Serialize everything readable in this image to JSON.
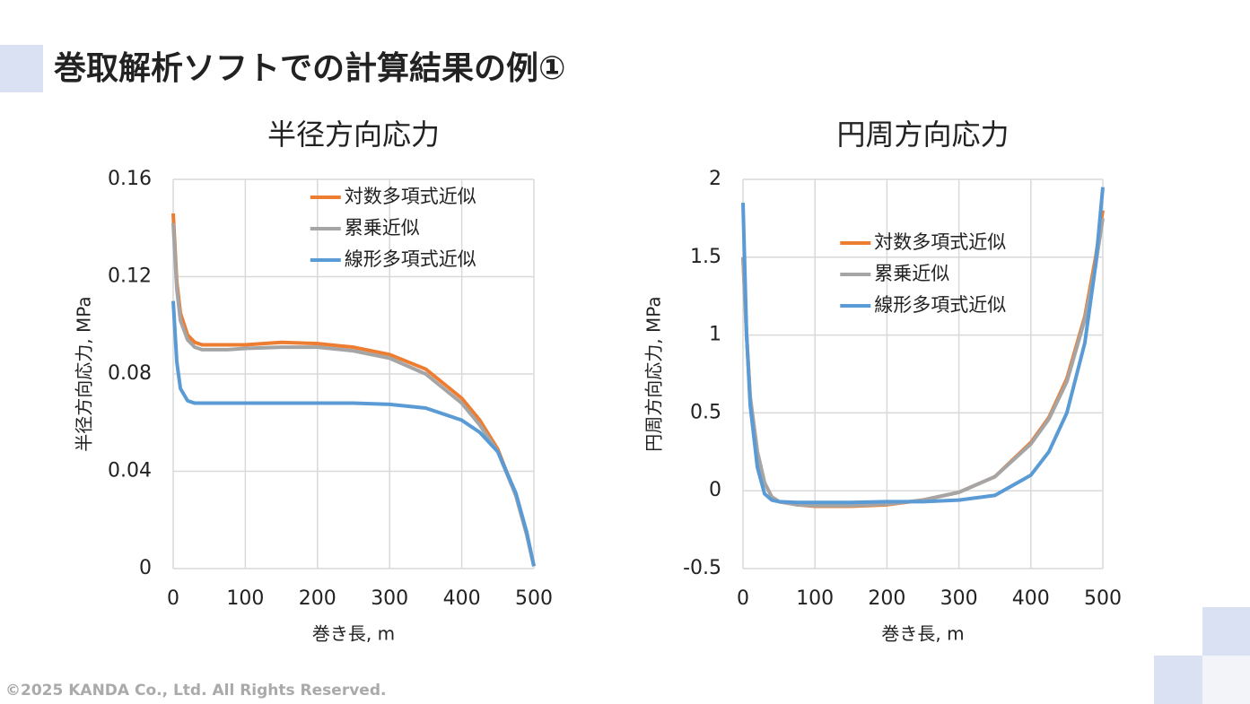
{
  "header": {
    "title": "巻取解析ソフトでの計算結果の例①"
  },
  "footer": {
    "copyright": "©2025 KANDA Co., Ltd. All Rights Reserved."
  },
  "chart_data": [
    {
      "type": "line",
      "title": "半径方向応力",
      "x_label": "巻き長, m",
      "y_label": "半径方向応力, MPa",
      "x": [
        0,
        5,
        10,
        20,
        30,
        40,
        50,
        75,
        100,
        150,
        200,
        250,
        300,
        350,
        400,
        425,
        450,
        475,
        490,
        500
      ],
      "series": [
        {
          "name": "対数多項式近似",
          "color": "#ed7d31",
          "values": [
            0.146,
            0.118,
            0.105,
            0.096,
            0.093,
            0.092,
            0.092,
            0.092,
            0.092,
            0.093,
            0.0925,
            0.091,
            0.088,
            0.082,
            0.07,
            0.061,
            0.049,
            0.03,
            0.014,
            0.001
          ]
        },
        {
          "name": "累乗近似",
          "color": "#a5a5a5",
          "values": [
            0.142,
            0.115,
            0.102,
            0.094,
            0.091,
            0.09,
            0.09,
            0.09,
            0.0905,
            0.091,
            0.091,
            0.0895,
            0.0865,
            0.08,
            0.068,
            0.059,
            0.048,
            0.03,
            0.014,
            0.001
          ]
        },
        {
          "name": "線形多項式近似",
          "color": "#5b9bd5",
          "values": [
            0.11,
            0.085,
            0.074,
            0.069,
            0.068,
            0.068,
            0.068,
            0.068,
            0.068,
            0.068,
            0.068,
            0.068,
            0.0675,
            0.066,
            0.061,
            0.056,
            0.048,
            0.031,
            0.015,
            0.001
          ]
        }
      ],
      "xlim": [
        0,
        500
      ],
      "xticks": [
        0,
        100,
        200,
        300,
        400,
        500
      ],
      "ylim": [
        0,
        0.16
      ],
      "yticks": [
        0,
        0.04,
        0.08,
        0.12,
        0.16
      ],
      "grid": true,
      "legend": "upper right"
    },
    {
      "type": "line",
      "title": "円周方向応力",
      "x_label": "巻き長, m",
      "y_label": "円周方向応力, MPa",
      "x": [
        0,
        5,
        10,
        20,
        30,
        40,
        50,
        75,
        100,
        150,
        200,
        250,
        300,
        350,
        400,
        425,
        450,
        475,
        490,
        500
      ],
      "series": [
        {
          "name": "対数多項式近似",
          "color": "#ed7d31",
          "values": [
            1.5,
            1.0,
            0.6,
            0.25,
            0.05,
            -0.04,
            -0.07,
            -0.09,
            -0.1,
            -0.1,
            -0.09,
            -0.06,
            -0.01,
            0.09,
            0.31,
            0.47,
            0.72,
            1.12,
            1.5,
            1.8
          ]
        },
        {
          "name": "累乗近似",
          "color": "#a5a5a5",
          "values": [
            1.5,
            1.0,
            0.6,
            0.25,
            0.05,
            -0.04,
            -0.07,
            -0.09,
            -0.095,
            -0.095,
            -0.085,
            -0.06,
            -0.01,
            0.09,
            0.3,
            0.46,
            0.7,
            1.1,
            1.45,
            1.75
          ]
        },
        {
          "name": "線形多項式近似",
          "color": "#5b9bd5",
          "values": [
            1.85,
            1.0,
            0.55,
            0.15,
            -0.02,
            -0.06,
            -0.07,
            -0.075,
            -0.075,
            -0.075,
            -0.07,
            -0.07,
            -0.06,
            -0.03,
            0.1,
            0.25,
            0.5,
            0.95,
            1.45,
            1.95
          ]
        }
      ],
      "xlim": [
        0,
        500
      ],
      "xticks": [
        0,
        100,
        200,
        300,
        400,
        500
      ],
      "ylim": [
        -0.5,
        2
      ],
      "yticks": [
        -0.5,
        0,
        0.5,
        1,
        1.5,
        2
      ],
      "grid": true,
      "legend": "upper center"
    }
  ]
}
